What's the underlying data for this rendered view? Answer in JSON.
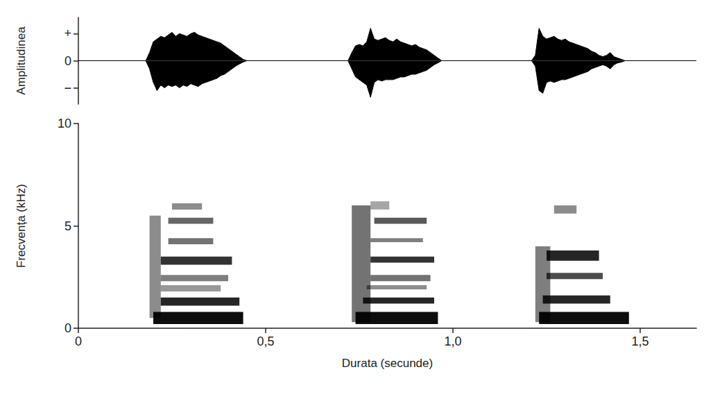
{
  "chart_data": [
    {
      "type": "area",
      "ylabel": "Amplitudinea",
      "xlim": [
        0,
        1.65
      ],
      "ylim": [
        -1.6,
        1.6
      ],
      "yticks": [
        {
          "value": -1,
          "label": "−"
        },
        0,
        {
          "value": 1,
          "label": "+"
        }
      ],
      "tick_labels": "y",
      "grid": false,
      "x": [
        0,
        0.18,
        0.19,
        0.2,
        0.21,
        0.22,
        0.23,
        0.24,
        0.25,
        0.26,
        0.27,
        0.28,
        0.29,
        0.3,
        0.31,
        0.32,
        0.33,
        0.34,
        0.35,
        0.36,
        0.37,
        0.38,
        0.39,
        0.4,
        0.41,
        0.42,
        0.43,
        0.44,
        0.45,
        0.72,
        0.73,
        0.74,
        0.75,
        0.76,
        0.77,
        0.78,
        0.79,
        0.8,
        0.81,
        0.82,
        0.83,
        0.84,
        0.85,
        0.86,
        0.87,
        0.88,
        0.89,
        0.9,
        0.91,
        0.92,
        0.93,
        0.94,
        0.95,
        0.96,
        0.97,
        1.21,
        1.22,
        1.23,
        1.24,
        1.25,
        1.26,
        1.27,
        1.28,
        1.29,
        1.3,
        1.31,
        1.32,
        1.33,
        1.34,
        1.35,
        1.36,
        1.37,
        1.38,
        1.39,
        1.4,
        1.41,
        1.42,
        1.43,
        1.44,
        1.45,
        1.46,
        1.65
      ],
      "series": [
        {
          "color": "#000000",
          "values": [
            0,
            0,
            0.3,
            0.7,
            0.8,
            0.9,
            0.85,
            0.95,
            1.05,
            0.9,
            1.0,
            0.95,
            0.9,
            1.0,
            1.05,
            0.95,
            0.9,
            0.85,
            0.8,
            0.75,
            0.7,
            0.65,
            0.55,
            0.45,
            0.35,
            0.25,
            0.15,
            0.05,
            0,
            0,
            0.3,
            0.55,
            0.6,
            0.55,
            0.7,
            1.2,
            0.8,
            0.75,
            0.8,
            0.85,
            0.75,
            0.7,
            0.8,
            0.7,
            0.65,
            0.6,
            0.55,
            0.6,
            0.5,
            0.45,
            0.4,
            0.3,
            0.2,
            0.1,
            0,
            0,
            0.2,
            1.2,
            0.9,
            0.8,
            0.85,
            0.9,
            0.8,
            0.75,
            0.8,
            0.7,
            0.65,
            0.6,
            0.55,
            0.5,
            0.45,
            0.35,
            0.3,
            0.2,
            0.15,
            0.2,
            0.3,
            0.15,
            0.1,
            0.05,
            0,
            0
          ]
        },
        {
          "color": "#000000",
          "values": [
            0,
            0,
            -0.3,
            -0.8,
            -1.1,
            -0.9,
            -1.0,
            -0.9,
            -0.95,
            -0.9,
            -1.0,
            -0.9,
            -0.95,
            -0.85,
            -0.9,
            -0.95,
            -0.85,
            -0.8,
            -0.75,
            -0.7,
            -0.65,
            -0.55,
            -0.5,
            -0.4,
            -0.3,
            -0.2,
            -0.12,
            -0.05,
            0,
            0,
            -0.3,
            -0.6,
            -0.7,
            -0.8,
            -0.9,
            -1.35,
            -0.8,
            -0.7,
            -0.75,
            -0.7,
            -0.7,
            -0.7,
            -0.65,
            -0.6,
            -0.6,
            -0.55,
            -0.5,
            -0.5,
            -0.45,
            -0.4,
            -0.35,
            -0.25,
            -0.15,
            -0.08,
            0,
            0,
            -0.2,
            -1.1,
            -1.2,
            -0.8,
            -0.75,
            -0.8,
            -0.75,
            -0.7,
            -0.7,
            -0.65,
            -0.6,
            -0.55,
            -0.5,
            -0.45,
            -0.4,
            -0.3,
            -0.25,
            -0.2,
            -0.15,
            -0.2,
            -0.3,
            -0.15,
            -0.08,
            -0.05,
            0,
            0
          ]
        }
      ]
    },
    {
      "type": "heatmap",
      "xlabel": "Durata (secunde)",
      "ylabel": "Frecvența (kHz)",
      "xlim": [
        0,
        1.65
      ],
      "ylim": [
        0,
        10
      ],
      "xticks": [
        0,
        {
          "value": 0.5,
          "label": "0,5"
        },
        {
          "value": 1,
          "label": "1,0"
        },
        {
          "value": 1.5,
          "label": "1,5"
        }
      ],
      "yticks": [
        0,
        5,
        10
      ],
      "grid": false,
      "color": "#000000",
      "cells": [
        {
          "t_start": 0.19,
          "t_end": 0.22,
          "f_low": 0.5,
          "f_high": 5.5,
          "intensity": 0.45
        },
        {
          "t_start": 0.2,
          "t_end": 0.44,
          "f_low": 0.2,
          "f_high": 0.8,
          "intensity": 0.95
        },
        {
          "t_start": 0.22,
          "t_end": 0.43,
          "f_low": 1.1,
          "f_high": 1.5,
          "intensity": 0.85
        },
        {
          "t_start": 0.22,
          "t_end": 0.38,
          "f_low": 1.8,
          "f_high": 2.1,
          "intensity": 0.4
        },
        {
          "t_start": 0.22,
          "t_end": 0.4,
          "f_low": 2.3,
          "f_high": 2.6,
          "intensity": 0.5
        },
        {
          "t_start": 0.22,
          "t_end": 0.41,
          "f_low": 3.1,
          "f_high": 3.5,
          "intensity": 0.8
        },
        {
          "t_start": 0.24,
          "t_end": 0.36,
          "f_low": 4.1,
          "f_high": 4.4,
          "intensity": 0.55
        },
        {
          "t_start": 0.24,
          "t_end": 0.36,
          "f_low": 5.1,
          "f_high": 5.4,
          "intensity": 0.6
        },
        {
          "t_start": 0.25,
          "t_end": 0.33,
          "f_low": 5.8,
          "f_high": 6.1,
          "intensity": 0.45
        },
        {
          "t_start": 0.73,
          "t_end": 0.78,
          "f_low": 0.3,
          "f_high": 6.0,
          "intensity": 0.55
        },
        {
          "t_start": 0.74,
          "t_end": 0.96,
          "f_low": 0.2,
          "f_high": 0.8,
          "intensity": 0.95
        },
        {
          "t_start": 0.76,
          "t_end": 0.95,
          "f_low": 1.2,
          "f_high": 1.5,
          "intensity": 0.85
        },
        {
          "t_start": 0.77,
          "t_end": 0.93,
          "f_low": 1.9,
          "f_high": 2.1,
          "intensity": 0.45
        },
        {
          "t_start": 0.78,
          "t_end": 0.94,
          "f_low": 2.3,
          "f_high": 2.6,
          "intensity": 0.55
        },
        {
          "t_start": 0.78,
          "t_end": 0.95,
          "f_low": 3.2,
          "f_high": 3.5,
          "intensity": 0.8
        },
        {
          "t_start": 0.78,
          "t_end": 0.92,
          "f_low": 4.2,
          "f_high": 4.4,
          "intensity": 0.5
        },
        {
          "t_start": 0.79,
          "t_end": 0.93,
          "f_low": 5.1,
          "f_high": 5.4,
          "intensity": 0.65
        },
        {
          "t_start": 0.78,
          "t_end": 0.83,
          "f_low": 5.8,
          "f_high": 6.2,
          "intensity": 0.35
        },
        {
          "t_start": 1.22,
          "t_end": 1.26,
          "f_low": 0.3,
          "f_high": 4.0,
          "intensity": 0.5
        },
        {
          "t_start": 1.23,
          "t_end": 1.47,
          "f_low": 0.2,
          "f_high": 0.8,
          "intensity": 0.95
        },
        {
          "t_start": 1.24,
          "t_end": 1.42,
          "f_low": 1.2,
          "f_high": 1.6,
          "intensity": 0.85
        },
        {
          "t_start": 1.25,
          "t_end": 1.4,
          "f_low": 2.4,
          "f_high": 2.7,
          "intensity": 0.7
        },
        {
          "t_start": 1.25,
          "t_end": 1.39,
          "f_low": 3.3,
          "f_high": 3.8,
          "intensity": 0.85
        },
        {
          "t_start": 1.27,
          "t_end": 1.33,
          "f_low": 5.6,
          "f_high": 6.0,
          "intensity": 0.45
        }
      ]
    }
  ]
}
